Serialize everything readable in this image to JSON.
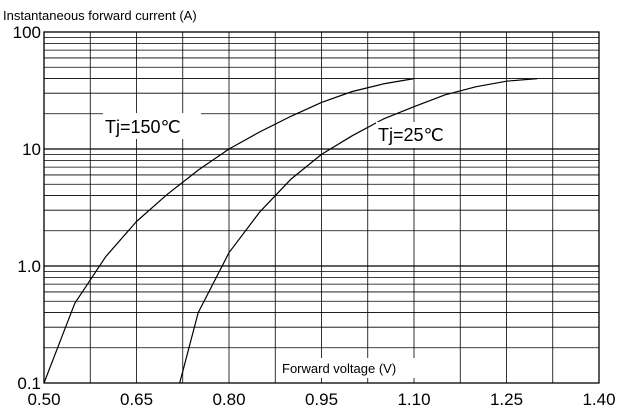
{
  "chart_data": {
    "type": "line",
    "ylabel": "Instantaneous forward current (A)",
    "xlabel": "Forward voltage (V)",
    "x_scale": "linear",
    "y_scale": "log",
    "xlim": [
      0.5,
      1.4
    ],
    "ylim": [
      0.1,
      100
    ],
    "x_ticks": [
      "0.50",
      "0.65",
      "0.80",
      "0.95",
      "1.10",
      "1.25",
      "1.40"
    ],
    "y_ticks": [
      "0.1",
      "1.0",
      "10",
      "100"
    ],
    "grid": true,
    "series": [
      {
        "name": "Tj=150℃",
        "x": [
          0.5,
          0.55,
          0.6,
          0.65,
          0.7,
          0.75,
          0.8,
          0.85,
          0.9,
          0.95,
          1.0,
          1.05,
          1.1
        ],
        "y": [
          0.1,
          0.48,
          1.2,
          2.4,
          4.1,
          6.6,
          10,
          14,
          19,
          25,
          31,
          36,
          40
        ]
      },
      {
        "name": "Tj=25℃",
        "x": [
          0.72,
          0.75,
          0.8,
          0.85,
          0.9,
          0.95,
          1.0,
          1.05,
          1.1,
          1.15,
          1.2,
          1.25,
          1.3
        ],
        "y": [
          0.1,
          0.4,
          1.3,
          2.9,
          5.5,
          9,
          13,
          18,
          23,
          29,
          34,
          38,
          40
        ]
      }
    ]
  }
}
